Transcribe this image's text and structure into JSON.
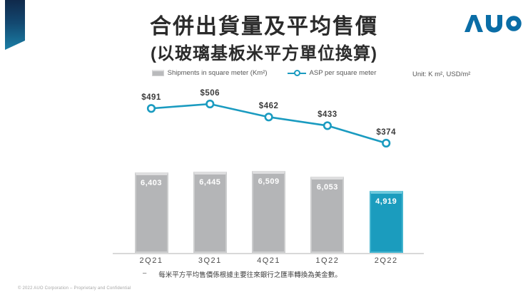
{
  "slide": {
    "title": "合併出貨量及平均售價",
    "subtitle": "(以玻璃基板米平方單位換算)",
    "logo_text": "AUO",
    "unit_label": "Unit: K m², USD/m²",
    "footnote_dash": "–",
    "footnote": "每米平方平均售價係根據主要往來銀行之匯率轉換為美金數。",
    "copyright": "© 2022 AUO Corporation – Proprietary and Confidential"
  },
  "colors": {
    "accent_teal": "#1A9BC0",
    "bar_gray": "#B4B5B7",
    "highlight_bar": "#1B9CBE",
    "logo_blue": "#0A6DA6"
  },
  "chart_data": {
    "type": "combo",
    "categories": [
      "2Q21",
      "3Q21",
      "4Q21",
      "1Q22",
      "2Q22"
    ],
    "series": [
      {
        "name": "Shipments in square meter (Km²)",
        "type": "bar",
        "unit": "K m²",
        "values": [
          6403,
          6445,
          6509,
          6053,
          4919
        ],
        "labels": [
          "6,403",
          "6,445",
          "6,509",
          "6,053",
          "4,919"
        ],
        "highlight_index": 4
      },
      {
        "name": "ASP per square meter",
        "type": "line",
        "unit": "USD/m²",
        "values": [
          491,
          506,
          462,
          433,
          374
        ],
        "labels": [
          "$491",
          "$506",
          "$462",
          "$433",
          "$374"
        ]
      }
    ],
    "title": "合併出貨量及平均售價",
    "subtitle": "(以玻璃基板米平方單位換算)",
    "legend_position": "top",
    "grid": false,
    "axis_labels_visible": false
  }
}
